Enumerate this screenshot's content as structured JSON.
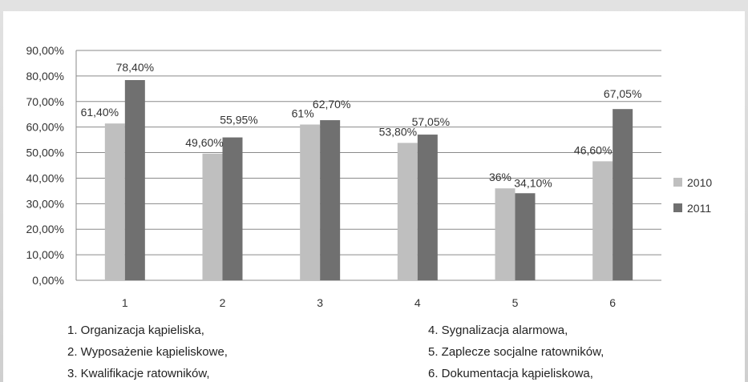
{
  "chart_data": {
    "type": "bar",
    "categories": [
      "1",
      "2",
      "3",
      "4",
      "5",
      "6"
    ],
    "series": [
      {
        "name": "2010",
        "values": [
          61.4,
          49.6,
          61,
          53.8,
          36,
          46.6
        ],
        "labels": [
          "61,40%",
          "49,60%",
          "61%",
          "53,80%",
          "36%",
          "46,60%"
        ],
        "color": "#bfbfbf"
      },
      {
        "name": "2011",
        "values": [
          78.4,
          55.95,
          62.7,
          57.05,
          34.1,
          67.05
        ],
        "labels": [
          "78,40%",
          "55,95%",
          "62,70%",
          "57,05%",
          "34,10%",
          "67,05%"
        ],
        "color": "#707070"
      }
    ],
    "yticks": [
      "0,00%",
      "10,00%",
      "20,00%",
      "30,00%",
      "40,00%",
      "50,00%",
      "60,00%",
      "70,00%",
      "80,00%",
      "90,00%"
    ],
    "ylim": [
      0,
      90
    ],
    "grid": true,
    "legend_position": "right"
  },
  "notes_left": [
    "1. Organizacja kąpieliska,",
    "2. Wyposażenie kąpieliskowe,",
    "3. Kwalifikacje ratowników,"
  ],
  "notes_right": [
    "4. Sygnalizacja alarmowa,",
    "5. Zaplecze socjalne ratowników,",
    "6. Dokumentacja kąpieliskowa,"
  ]
}
